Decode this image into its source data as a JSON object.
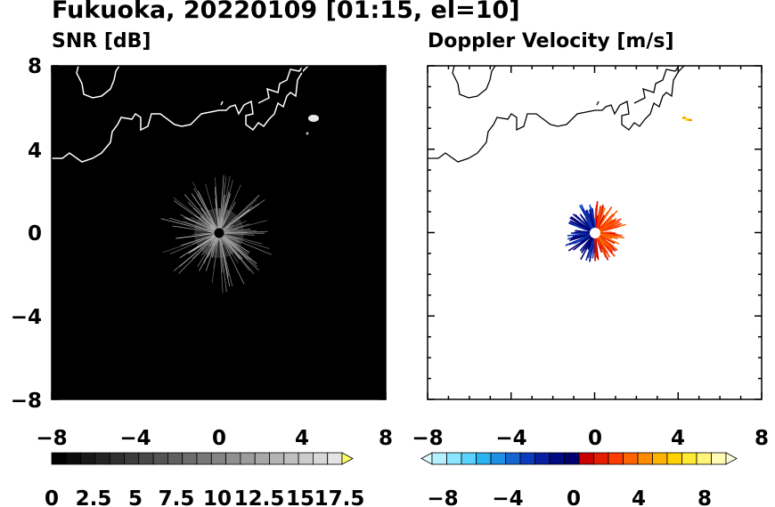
{
  "title": "Fukuoka, 20220109 [01:15, el=10]",
  "chart_data": [
    {
      "type": "heatmap",
      "title": "SNR [dB]",
      "xlim": [
        -8,
        8
      ],
      "ylim": [
        -8,
        8
      ],
      "xticks": [
        "−8",
        "−4",
        "0",
        "4",
        "8"
      ],
      "yticks": [
        "8",
        "4",
        "0",
        "−4",
        "−8"
      ],
      "background": "#000000",
      "colorbar": {
        "labels": [
          "0",
          "2.5",
          "5",
          "7.5",
          "10",
          "12.5",
          "15",
          "17.5"
        ],
        "colors": [
          "#000000",
          "#0c0c0c",
          "#181818",
          "#242424",
          "#303030",
          "#3c3c3c",
          "#484848",
          "#545454",
          "#606060",
          "#6c6c6c",
          "#787878",
          "#848484",
          "#909090",
          "#9c9c9c",
          "#a8a8a8",
          "#b4b4b4",
          "#c0c0c0",
          "#cccccc",
          "#d8d8d8",
          "#e4e4e4"
        ],
        "extend_color": "#ffff66"
      }
    },
    {
      "type": "heatmap",
      "title": "Doppler Velocity [m/s]",
      "xlim": [
        -8,
        8
      ],
      "ylim": [
        -8,
        8
      ],
      "xticks": [
        "−8",
        "−4",
        "0",
        "4",
        "8"
      ],
      "yticks": [
        "8",
        "4",
        "0",
        "−4",
        "−8"
      ],
      "background": "#ffffff",
      "colorbar": {
        "labels": [
          "−8",
          "−4",
          "0",
          "4",
          "8"
        ],
        "colors": [
          "#b4f0ff",
          "#8ce6ff",
          "#5ad2ff",
          "#28b4f0",
          "#1e90e6",
          "#1464d2",
          "#0a3cbe",
          "#0a1ea0",
          "#000a82",
          "#00006e",
          "#c80000",
          "#e61e00",
          "#ff3c00",
          "#ff6400",
          "#ff8c00",
          "#ffb400",
          "#ffd200",
          "#ffeb32",
          "#fff578",
          "#fffab4"
        ],
        "extend_low": "#dcfaff",
        "extend_high": "#ffffdc"
      }
    }
  ]
}
